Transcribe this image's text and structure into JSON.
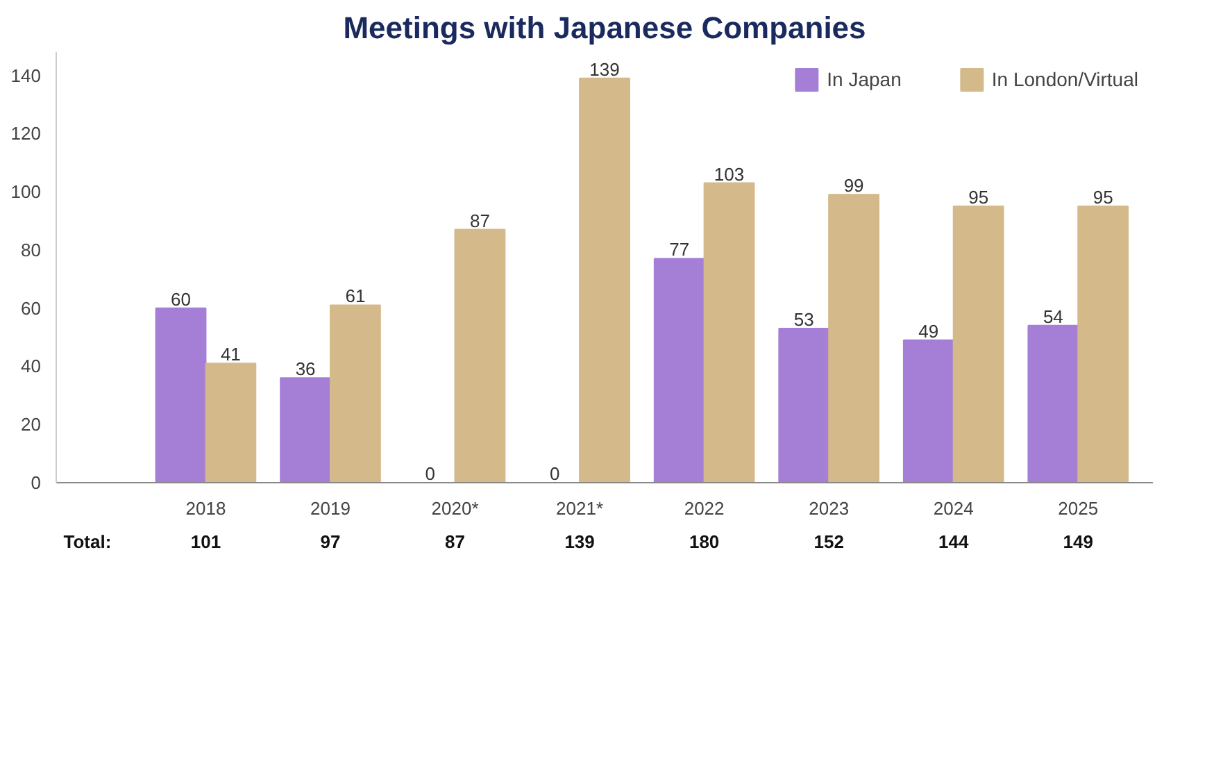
{
  "chart_data": {
    "type": "bar",
    "title": "Meetings with Japanese Companies",
    "categories": [
      "2018",
      "2019",
      "2020*",
      "2021*",
      "2022",
      "2023",
      "2024",
      "2025"
    ],
    "series": [
      {
        "name": "In Japan",
        "color": "#a57fd6",
        "values": [
          60,
          36,
          0,
          0,
          77,
          53,
          49,
          54
        ]
      },
      {
        "name": "In London/Virtual",
        "color": "#d4b98a",
        "values": [
          41,
          61,
          87,
          139,
          103,
          99,
          95,
          95
        ]
      }
    ],
    "totals": [
      "101",
      "97",
      "87",
      "139",
      "180",
      "152",
      "144",
      "149"
    ],
    "annotations": [
      "Total:"
    ],
    "ylim": [
      0,
      148
    ],
    "yticks": [
      0,
      20,
      40,
      60,
      80,
      100,
      120,
      140
    ],
    "data_labels": true,
    "grid": false,
    "legend": "top right"
  }
}
